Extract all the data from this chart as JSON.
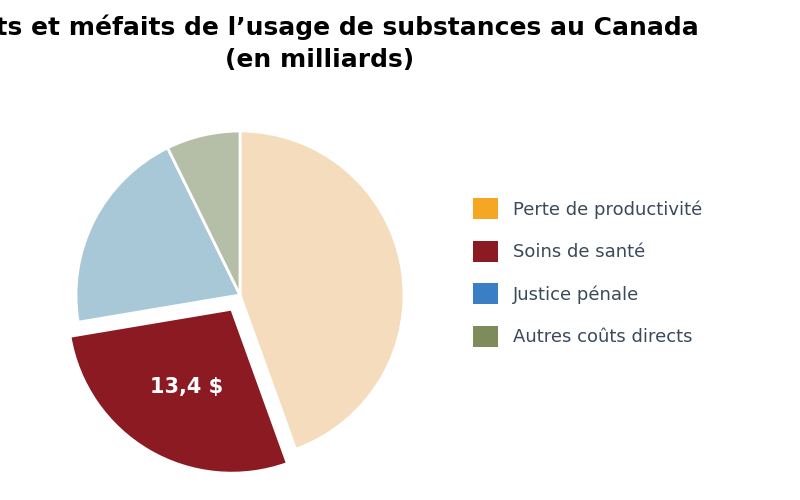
{
  "title_line1": "Coûts et méfaits de l’usage de substances au Canada",
  "title_line2": "(en milliards)",
  "slices": [
    {
      "label": "Perte de productivité",
      "value": 21.4,
      "color": "#F5DCBC",
      "legend_color": "#F5A623",
      "explode": 0.0
    },
    {
      "label": "Soins de santé",
      "value": 13.4,
      "color": "#8B1A22",
      "legend_color": "#8B1A22",
      "explode": 0.1
    },
    {
      "label": "Justice pénale",
      "value": 9.8,
      "color": "#A8C8D8",
      "legend_color": "#3A7EC6",
      "explode": 0.0
    },
    {
      "label": "Autres coûts directs",
      "value": 3.5,
      "color": "#B5BFA8",
      "legend_color": "#7D8C5A",
      "explode": 0.0
    }
  ],
  "label_text": "13,4 $",
  "label_slice_index": 1,
  "label_color": "#ffffff",
  "label_fontsize": 15,
  "title_fontsize": 18,
  "legend_fontsize": 13,
  "legend_text_color": "#3A4A5A",
  "startangle": 90,
  "background_color": "#ffffff"
}
